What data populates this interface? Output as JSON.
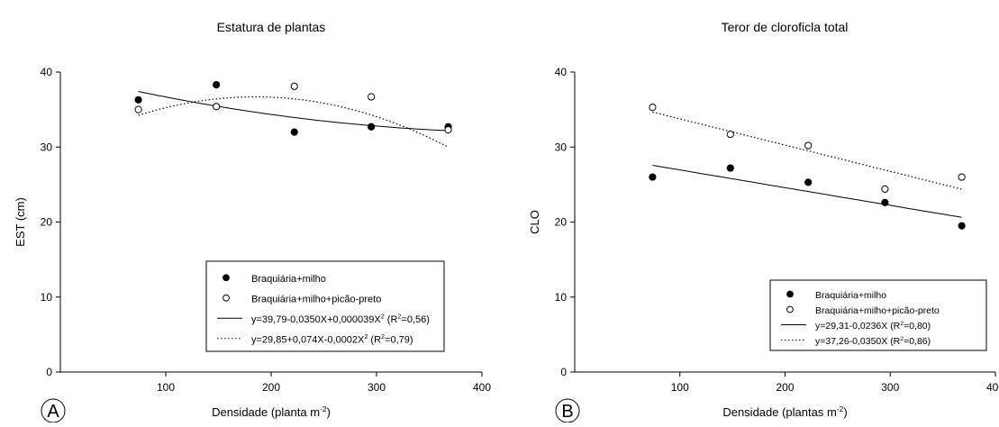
{
  "chart_data": [
    {
      "type": "scatter",
      "panel_label": "A",
      "title": "Estatura de plantas",
      "xlabel": {
        "main": "Densidade (planta m",
        "sup": "-2",
        "tail": ")"
      },
      "ylabel": "EST (cm)",
      "xlim": [
        0,
        400
      ],
      "ylim": [
        0,
        40
      ],
      "xticks": [
        100,
        200,
        300,
        400
      ],
      "yticks": [
        0,
        10,
        20,
        30,
        40
      ],
      "grid": false,
      "legend_position": "lower-right",
      "x": [
        74,
        148,
        222,
        295,
        368
      ],
      "series": [
        {
          "name": "Braquiária+milho",
          "marker": "filled-circle",
          "values": [
            36.3,
            38.3,
            32.0,
            32.7,
            32.7
          ]
        },
        {
          "name": "Braquiária+milho+picão-preto",
          "marker": "open-circle",
          "values": [
            35.0,
            35.4,
            38.1,
            36.7,
            32.3
          ]
        }
      ],
      "fits": [
        {
          "label": {
            "main": "y=39,79-0,0350X+0,000039X",
            "sup": "2",
            "tail": " (R",
            "sup2": "2",
            "tail2": "=0,56)"
          },
          "style": "solid",
          "coef": [
            39.79,
            -0.035,
            3.9e-05
          ]
        },
        {
          "label": {
            "main": "y=29,85+0,074X-0,0002X",
            "sup": "2",
            "tail": " (R",
            "sup2": "2",
            "tail2": "=0,79)"
          },
          "style": "dotted",
          "coef": [
            29.85,
            0.074,
            -0.0002
          ]
        }
      ]
    },
    {
      "type": "scatter",
      "panel_label": "B",
      "title": "Teror de cloroficla total",
      "xlabel": {
        "main": "Densidade (plantas m",
        "sup": "-2",
        "tail": ")"
      },
      "ylabel": "CLO",
      "xlim": [
        0,
        400
      ],
      "ylim": [
        0,
        40
      ],
      "xticks": [
        100,
        200,
        300,
        400
      ],
      "yticks": [
        0,
        10,
        20,
        30,
        40
      ],
      "grid": false,
      "legend_position": "lower-right",
      "x": [
        74,
        148,
        222,
        295,
        368
      ],
      "series": [
        {
          "name": "Braquiária+milho",
          "marker": "filled-circle",
          "values": [
            26.0,
            27.2,
            25.3,
            22.6,
            19.5
          ]
        },
        {
          "name": "Braquiária+milho+picão-preto",
          "marker": "open-circle",
          "values": [
            35.3,
            31.7,
            30.2,
            24.4,
            26.0
          ]
        }
      ],
      "fits": [
        {
          "label": {
            "main": "y=29,31-0,0236X (R",
            "sup": "2",
            "tail": "=0,80)"
          },
          "style": "solid",
          "coef": [
            29.31,
            -0.0236,
            0
          ]
        },
        {
          "label": {
            "main": "y=37,26-0,0350X (R",
            "sup": "2",
            "tail": "=0,86)"
          },
          "style": "dotted",
          "coef": [
            37.26,
            -0.035,
            0
          ]
        }
      ]
    }
  ]
}
